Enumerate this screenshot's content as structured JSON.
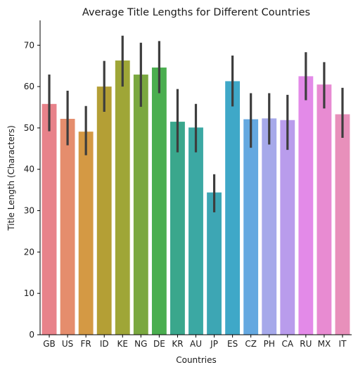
{
  "chart_data": {
    "type": "bar",
    "title": "Average Title Lengths for Different Countries",
    "xlabel": "Countries",
    "ylabel": "Title Length (Characters)",
    "categories": [
      "GB",
      "US",
      "FR",
      "ID",
      "KE",
      "NG",
      "DE",
      "KR",
      "AU",
      "JP",
      "ES",
      "CZ",
      "PH",
      "CA",
      "RU",
      "MX",
      "IT"
    ],
    "values": [
      55.8,
      52.2,
      49.1,
      60.0,
      66.3,
      62.9,
      64.6,
      51.5,
      50.1,
      34.4,
      61.3,
      52.1,
      52.3,
      51.9,
      62.5,
      60.5,
      53.3
    ],
    "error_low": [
      49.2,
      45.8,
      43.4,
      53.9,
      60.0,
      55.1,
      58.4,
      44.1,
      44.1,
      29.6,
      55.2,
      45.2,
      46.0,
      44.7,
      56.7,
      54.7,
      47.6
    ],
    "error_high": [
      62.9,
      59.0,
      55.3,
      66.2,
      72.3,
      70.6,
      71.0,
      59.4,
      55.8,
      38.8,
      67.5,
      58.4,
      58.4,
      58.0,
      68.3,
      65.9,
      59.7
    ],
    "colors": [
      "#e8828a",
      "#e58d6d",
      "#d49944",
      "#b49f35",
      "#9fa637",
      "#7aa83f",
      "#4aae4f",
      "#3aa78c",
      "#3ba8a3",
      "#3da6b4",
      "#3fa8c8",
      "#64a8e0",
      "#a6a9ea",
      "#b99cec",
      "#e38ae8",
      "#e88bd2",
      "#e890bb"
    ],
    "error_color": "#3d3d3d",
    "ylim": [
      0,
      76
    ],
    "yticks": [
      0,
      10,
      20,
      30,
      40,
      50,
      60,
      70
    ],
    "grid": false,
    "legend": "none"
  }
}
